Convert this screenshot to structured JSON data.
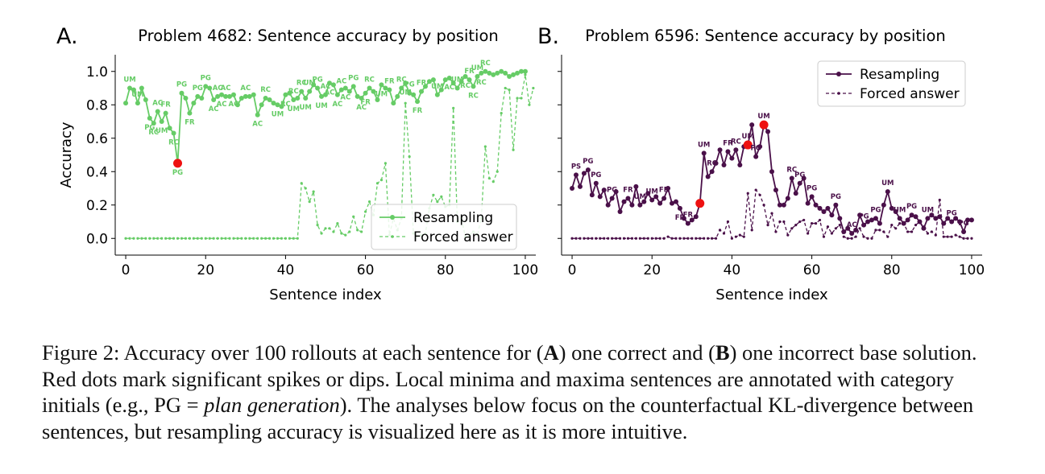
{
  "figure": {
    "caption": {
      "prefix": "Figure 2: Accuracy over 100 rollouts at each sentence for (",
      "bold_a": "A",
      "mid1": ") one correct and (",
      "bold_b": "B",
      "mid2": ") one incorrect base solution. Red dots mark significant spikes or dips. Local minima and maxima sentences are annotated with category initials (e.g., PG = ",
      "italic": "plan generation",
      "suffix": "). The analyses below focus on the counterfactual KL-divergence between sentences, but resampling accuracy is visualized here as it is more intuitive."
    }
  },
  "chart_data": [
    {
      "type": "line",
      "panel_letter": "A.",
      "title": "Problem 4682: Sentence accuracy by position",
      "xlabel": "Sentence index",
      "ylabel": "Accuracy",
      "xlim": [
        0,
        100
      ],
      "ylim": [
        -0.1,
        1.1
      ],
      "xticks": [
        0,
        20,
        40,
        60,
        80,
        100
      ],
      "yticks": [
        0.0,
        0.2,
        0.4,
        0.6,
        0.8,
        1.0
      ],
      "ytick_labels": [
        "0.0",
        "0.2",
        "0.4",
        "0.6",
        "0.8",
        "1.0"
      ],
      "legend_position": "lower-right",
      "color": "#66cc66",
      "series": [
        {
          "name": "Resampling",
          "style": "solid",
          "values": [
            0.81,
            0.9,
            0.89,
            0.81,
            0.9,
            0.83,
            0.72,
            0.69,
            0.76,
            0.7,
            0.75,
            0.66,
            0.63,
            0.45,
            0.87,
            0.84,
            0.75,
            0.81,
            0.85,
            0.84,
            0.91,
            0.9,
            0.83,
            0.85,
            0.86,
            0.85,
            0.85,
            0.86,
            0.8,
            0.84,
            0.85,
            0.85,
            0.86,
            0.74,
            0.8,
            0.84,
            0.83,
            0.81,
            0.8,
            0.79,
            0.86,
            0.87,
            0.83,
            0.84,
            0.88,
            0.84,
            0.88,
            0.92,
            0.9,
            0.85,
            0.86,
            0.93,
            0.92,
            0.86,
            0.89,
            0.9,
            0.88,
            0.91,
            0.85,
            0.84,
            0.87,
            0.9,
            0.88,
            0.83,
            0.92,
            0.9,
            0.89,
            0.81,
            0.85,
            0.9,
            0.93,
            0.87,
            0.86,
            0.82,
            0.88,
            0.91,
            0.94,
            0.95,
            0.86,
            0.89,
            0.95,
            0.96,
            0.93,
            0.9,
            0.94,
            0.97,
            0.95,
            0.91,
            0.97,
            0.99,
            1.0,
            0.99,
            0.98,
            0.99,
            1.0,
            0.99,
            0.97,
            0.98,
            0.99,
            1.0,
            1.0
          ],
          "highlights": [
            13
          ]
        },
        {
          "name": "Forced answer",
          "style": "dashed",
          "values": [
            0,
            0,
            0,
            0,
            0,
            0,
            0,
            0,
            0,
            0,
            0,
            0,
            0,
            0,
            0,
            0,
            0,
            0,
            0,
            0,
            0,
            0,
            0,
            0,
            0,
            0,
            0,
            0,
            0,
            0,
            0,
            0,
            0,
            0,
            0,
            0,
            0,
            0,
            0,
            0,
            0,
            0,
            0,
            0,
            0.33,
            0.3,
            0.22,
            0.28,
            0.08,
            0.03,
            0.06,
            0.06,
            0.04,
            0.09,
            0.03,
            0.02,
            0.04,
            0.13,
            0.05,
            0.04,
            0.16,
            0.22,
            0.14,
            0.33,
            0.35,
            0.45,
            0.02,
            0.12,
            0.05,
            0.12,
            0.81,
            0.49,
            0.03,
            0.01,
            0.02,
            0.03,
            0.18,
            0.26,
            0.22,
            0.25,
            0.19,
            0.2,
            0.78,
            0.1,
            0.12,
            0.01,
            0.02,
            0.04,
            0.02,
            0.12,
            0.55,
            0.36,
            0.34,
            0.4,
            0.75,
            0.9,
            0.89,
            0.53,
            0.84,
            0.84,
            0.98,
            0.8,
            0.9
          ],
          "highlights": []
        }
      ],
      "annotations": [
        {
          "x": 1,
          "text": "UM",
          "pos": "above"
        },
        {
          "x": 3,
          "text": "UM",
          "pos": "above"
        },
        {
          "x": 6,
          "text": "PG",
          "pos": "below"
        },
        {
          "x": 7,
          "text": "RC",
          "pos": "below"
        },
        {
          "x": 8,
          "text": "AC",
          "pos": "above"
        },
        {
          "x": 10,
          "text": "FR",
          "pos": "above"
        },
        {
          "x": 9,
          "text": "UM",
          "pos": "below"
        },
        {
          "x": 12,
          "text": "RC",
          "pos": "below"
        },
        {
          "x": 13,
          "text": "PG",
          "pos": "below"
        },
        {
          "x": 14,
          "text": "PG",
          "pos": "above"
        },
        {
          "x": 16,
          "text": "FR",
          "pos": "below"
        },
        {
          "x": 18,
          "text": "PG",
          "pos": "above"
        },
        {
          "x": 20,
          "text": "PG",
          "pos": "above"
        },
        {
          "x": 23,
          "text": "AC",
          "pos": "above"
        },
        {
          "x": 25,
          "text": "AC",
          "pos": "above"
        },
        {
          "x": 22,
          "text": "AC",
          "pos": "below"
        },
        {
          "x": 24,
          "text": "AC",
          "pos": "below"
        },
        {
          "x": 27,
          "text": "AC",
          "pos": "below"
        },
        {
          "x": 30,
          "text": "AC",
          "pos": "above"
        },
        {
          "x": 33,
          "text": "AC",
          "pos": "below"
        },
        {
          "x": 35,
          "text": "RC",
          "pos": "above"
        },
        {
          "x": 38,
          "text": "UM",
          "pos": "below"
        },
        {
          "x": 40,
          "text": "RC",
          "pos": "below"
        },
        {
          "x": 42,
          "text": "UM",
          "pos": "below"
        },
        {
          "x": 42,
          "text": "RC",
          "pos": "above"
        },
        {
          "x": 44,
          "text": "RC",
          "pos": "above"
        },
        {
          "x": 46,
          "text": "UM",
          "pos": "above"
        },
        {
          "x": 45,
          "text": "UM",
          "pos": "below"
        },
        {
          "x": 48,
          "text": "PG",
          "pos": "above"
        },
        {
          "x": 50,
          "text": "AC",
          "pos": "above"
        },
        {
          "x": 49,
          "text": "UM",
          "pos": "below"
        },
        {
          "x": 51,
          "text": "AC",
          "pos": "below"
        },
        {
          "x": 54,
          "text": "AC",
          "pos": "above"
        },
        {
          "x": 53,
          "text": "AC",
          "pos": "below"
        },
        {
          "x": 55,
          "text": "AC",
          "pos": "below"
        },
        {
          "x": 57,
          "text": "PG",
          "pos": "above"
        },
        {
          "x": 59,
          "text": "AC",
          "pos": "below"
        },
        {
          "x": 60,
          "text": "FR",
          "pos": "below"
        },
        {
          "x": 61,
          "text": "RC",
          "pos": "above"
        },
        {
          "x": 64,
          "text": "UM",
          "pos": "below"
        },
        {
          "x": 66,
          "text": "FR",
          "pos": "above"
        },
        {
          "x": 69,
          "text": "RC",
          "pos": "above"
        },
        {
          "x": 71,
          "text": "PG",
          "pos": "above"
        },
        {
          "x": 70,
          "text": "UM",
          "pos": "below"
        },
        {
          "x": 73,
          "text": "FR",
          "pos": "below"
        },
        {
          "x": 74,
          "text": "FR",
          "pos": "above"
        },
        {
          "x": 78,
          "text": "UM",
          "pos": "above"
        },
        {
          "x": 81,
          "text": "AC",
          "pos": "below"
        },
        {
          "x": 83,
          "text": "UM",
          "pos": "above"
        },
        {
          "x": 86,
          "text": "FR",
          "pos": "above"
        },
        {
          "x": 88,
          "text": "UM",
          "pos": "above"
        },
        {
          "x": 90,
          "text": "RC",
          "pos": "above"
        },
        {
          "x": 85,
          "text": "RC",
          "pos": "below"
        },
        {
          "x": 87,
          "text": "RC",
          "pos": "below"
        },
        {
          "x": 89,
          "text": "RC",
          "pos": "below"
        }
      ]
    },
    {
      "type": "line",
      "panel_letter": "B.",
      "title": "Problem 6596: Sentence accuracy by position",
      "xlabel": "Sentence index",
      "ylabel": "",
      "xlim": [
        0,
        100
      ],
      "ylim": [
        -0.1,
        1.1
      ],
      "xticks": [
        0,
        20,
        40,
        60,
        80,
        100
      ],
      "legend_position": "top-right",
      "color": "#4a1049",
      "series": [
        {
          "name": "Resampling",
          "style": "solid",
          "values": [
            0.3,
            0.38,
            0.31,
            0.39,
            0.41,
            0.26,
            0.33,
            0.25,
            0.29,
            0.2,
            0.24,
            0.28,
            0.16,
            0.22,
            0.24,
            0.2,
            0.31,
            0.2,
            0.22,
            0.27,
            0.23,
            0.25,
            0.21,
            0.24,
            0.3,
            0.21,
            0.22,
            0.18,
            0.12,
            0.09,
            0.11,
            0.13,
            0.21,
            0.51,
            0.37,
            0.4,
            0.45,
            0.53,
            0.44,
            0.52,
            0.48,
            0.53,
            0.44,
            0.55,
            0.56,
            0.68,
            0.49,
            0.55,
            0.68,
            0.64,
            0.4,
            0.29,
            0.2,
            0.2,
            0.24,
            0.36,
            0.27,
            0.33,
            0.36,
            0.21,
            0.25,
            0.2,
            0.18,
            0.16,
            0.18,
            0.14,
            0.2,
            0.12,
            0.04,
            0.06,
            0.03,
            0.05,
            0.14,
            0.08,
            0.1,
            0.11,
            0.12,
            0.09,
            0.2,
            0.28,
            0.18,
            0.16,
            0.12,
            0.09,
            0.11,
            0.14,
            0.13,
            0.1,
            0.06,
            0.12,
            0.14,
            0.12,
            0.13,
            0.09,
            0.12,
            0.1,
            0.12,
            0.1,
            0.04,
            0.11,
            0.11
          ],
          "highlights": [
            32,
            44,
            48
          ]
        },
        {
          "name": "Forced answer",
          "style": "dashed",
          "values": [
            0,
            0,
            0,
            0,
            0,
            0,
            0,
            0,
            0,
            0,
            0,
            0,
            0,
            0,
            0,
            0,
            0,
            0,
            0,
            0,
            0,
            0,
            0,
            0,
            0.01,
            0,
            0,
            0,
            0,
            0,
            0,
            0,
            0,
            0,
            0,
            0,
            0,
            0.05,
            0.03,
            0.1,
            0,
            0.01,
            0.02,
            0.01,
            0.27,
            0.05,
            0.29,
            0.26,
            0.2,
            0.08,
            0.15,
            0.04,
            0.1,
            0.1,
            0.02,
            0.06,
            0.08,
            0.1,
            0.11,
            0.03,
            0.09,
            0.09,
            0.11,
            0.01,
            0.07,
            0.03,
            0.06,
            0.08,
            0.01,
            0,
            0,
            0.01,
            0.06,
            0.01,
            0,
            0,
            0.05,
            0.05,
            0.04,
            0.01,
            0.08,
            0.06,
            0.09,
            0.09,
            0.04,
            0.04,
            0.08,
            0.1,
            0.07,
            0.03,
            0.04,
            0.02,
            0.23,
            0.01,
            0.01,
            0.01,
            0.02,
            0.01,
            0,
            0,
            0
          ],
          "highlights": []
        }
      ],
      "annotations": [
        {
          "x": 1,
          "text": "PS",
          "pos": "above"
        },
        {
          "x": 4,
          "text": "PG",
          "pos": "above"
        },
        {
          "x": 6,
          "text": "PG",
          "pos": "above"
        },
        {
          "x": 10,
          "text": "PG",
          "pos": "above"
        },
        {
          "x": 14,
          "text": "FR",
          "pos": "above"
        },
        {
          "x": 17,
          "text": "UM",
          "pos": "above"
        },
        {
          "x": 20,
          "text": "UM",
          "pos": "above"
        },
        {
          "x": 23,
          "text": "FR",
          "pos": "above"
        },
        {
          "x": 27,
          "text": "FR",
          "pos": "below"
        },
        {
          "x": 29,
          "text": "FR",
          "pos": "above"
        },
        {
          "x": 33,
          "text": "UM",
          "pos": "above"
        },
        {
          "x": 35,
          "text": "RC",
          "pos": "above"
        },
        {
          "x": 39,
          "text": "FR",
          "pos": "above"
        },
        {
          "x": 41,
          "text": "RC",
          "pos": "above"
        },
        {
          "x": 44,
          "text": "UM",
          "pos": "above"
        },
        {
          "x": 46,
          "text": "PG",
          "pos": "above"
        },
        {
          "x": 48,
          "text": "UM",
          "pos": "above"
        },
        {
          "x": 55,
          "text": "RC",
          "pos": "above"
        },
        {
          "x": 57,
          "text": "PG",
          "pos": "above"
        },
        {
          "x": 60,
          "text": "PG",
          "pos": "above"
        },
        {
          "x": 66,
          "text": "PG",
          "pos": "above"
        },
        {
          "x": 70,
          "text": "AC",
          "pos": "above"
        },
        {
          "x": 73,
          "text": "PG",
          "pos": "above"
        },
        {
          "x": 76,
          "text": "PG",
          "pos": "above"
        },
        {
          "x": 79,
          "text": "UM",
          "pos": "above"
        },
        {
          "x": 82,
          "text": "UM",
          "pos": "above"
        },
        {
          "x": 85,
          "text": "PG",
          "pos": "above"
        },
        {
          "x": 89,
          "text": "UM",
          "pos": "above"
        },
        {
          "x": 95,
          "text": "PG",
          "pos": "above"
        },
        {
          "x": 98,
          "text": "PG",
          "pos": "above"
        }
      ]
    }
  ]
}
